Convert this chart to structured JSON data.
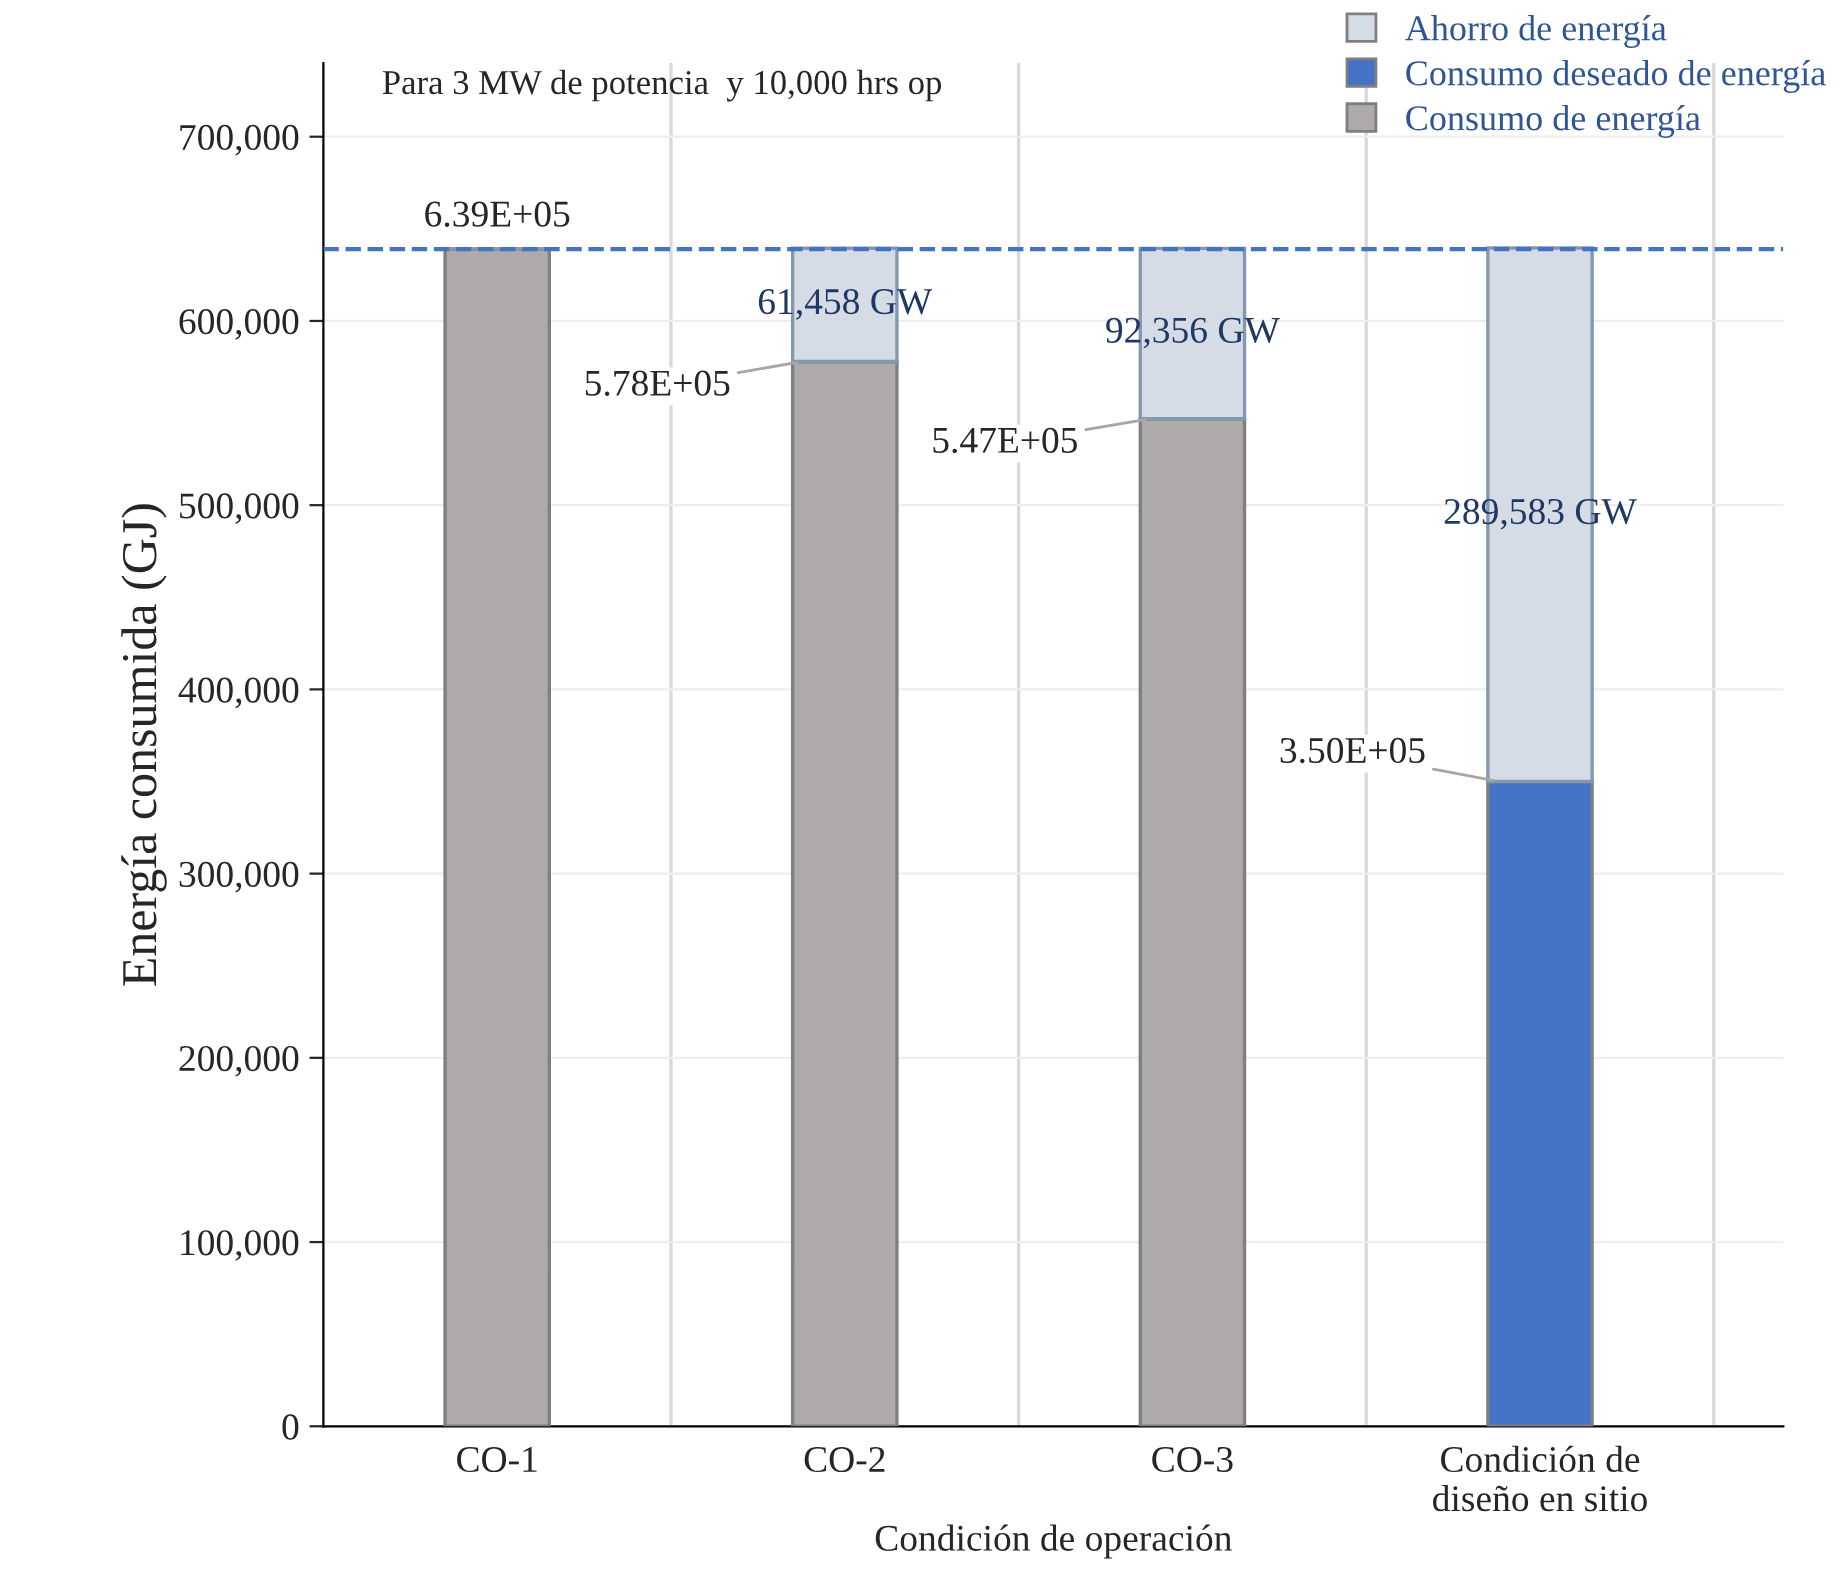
{
  "chart_data": {
    "type": "bar",
    "stacked": true,
    "title": "Para 3 MW de potencia  y 10,000 hrs op",
    "xlabel": "Condición de operación",
    "ylabel": "Energía consumida (GJ)",
    "categories": [
      "CO-1",
      "CO-2",
      "CO-3",
      "Condición de\ndiseño en sitio"
    ],
    "series": [
      {
        "name": "Consumo de energía",
        "color": "#aeaaaa",
        "values": [
          639000,
          578000,
          547000,
          null
        ],
        "value_labels": [
          "6.39E+05",
          "5.78E+05",
          "5.47E+05",
          null
        ]
      },
      {
        "name": "Consumo deseado de energía",
        "color": "#4472c4",
        "values": [
          null,
          null,
          null,
          350000
        ],
        "value_labels": [
          null,
          null,
          null,
          "3.50E+05"
        ]
      },
      {
        "name": "Ahorro de energía",
        "color": "#d6dce5",
        "values": [
          null,
          61458,
          92356,
          289583
        ],
        "value_labels": [
          null,
          "61,458 GW",
          "92,356 GW",
          "289,583 GW"
        ]
      }
    ],
    "ylim": [
      0,
      740000
    ],
    "yticks": [
      {
        "value": 0,
        "label": "0"
      },
      {
        "value": 100000,
        "label": "100,000"
      },
      {
        "value": 200000,
        "label": "200,000"
      },
      {
        "value": 300000,
        "label": "300,000"
      },
      {
        "value": 400000,
        "label": "400,000"
      },
      {
        "value": 500000,
        "label": "500,000"
      },
      {
        "value": 600000,
        "label": "600,000"
      },
      {
        "value": 700000,
        "label": "700,000"
      }
    ],
    "ref_lines": [
      {
        "axis": "y",
        "value": 639000,
        "color": "#4472c4",
        "line_style": "dashed"
      }
    ],
    "grid": true,
    "legend": "top right"
  }
}
